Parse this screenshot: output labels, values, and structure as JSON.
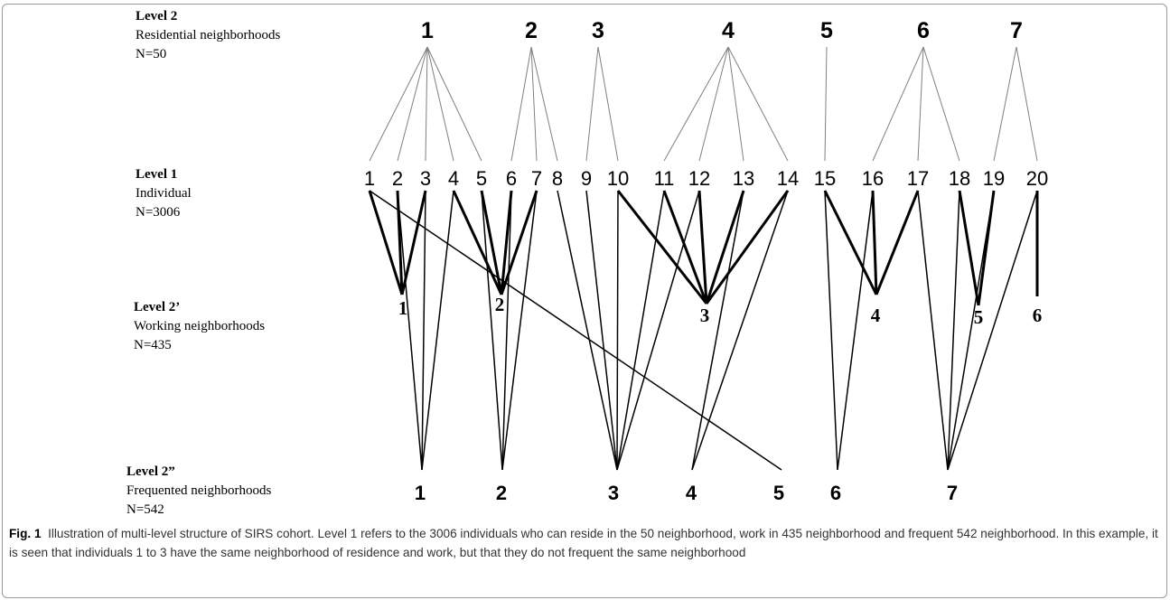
{
  "levels": [
    {
      "title": "Level 2",
      "desc": "Residential neighborhoods",
      "n": "N=50"
    },
    {
      "title": "Level 1",
      "desc": "Individual",
      "n": "N=3006"
    },
    {
      "title": "Level 2’",
      "desc": "Working neighborhoods",
      "n": "N=435"
    },
    {
      "title": "Level 2”",
      "desc": "Frequented neighborhoods",
      "n": "N=542"
    }
  ],
  "residential": [
    "1",
    "2",
    "3",
    "4",
    "5",
    "6",
    "7"
  ],
  "individuals": [
    "1",
    "2",
    "3",
    "4",
    "5",
    "6",
    "7",
    "8",
    "9",
    "10",
    "11",
    "12",
    "13",
    "14",
    "15",
    "16",
    "17",
    "18",
    "19",
    "20"
  ],
  "working": [
    "1",
    "2",
    "3",
    "4",
    "5",
    "6"
  ],
  "frequented": [
    "1",
    "2",
    "3",
    "4",
    "5",
    "6",
    "7"
  ],
  "edges": {
    "residence": [
      [
        1,
        1
      ],
      [
        1,
        2
      ],
      [
        1,
        3
      ],
      [
        1,
        4
      ],
      [
        1,
        5
      ],
      [
        2,
        6
      ],
      [
        2,
        7
      ],
      [
        2,
        8
      ],
      [
        3,
        9
      ],
      [
        3,
        10
      ],
      [
        4,
        11
      ],
      [
        4,
        12
      ],
      [
        4,
        13
      ],
      [
        4,
        14
      ],
      [
        5,
        15
      ],
      [
        6,
        16
      ],
      [
        6,
        17
      ],
      [
        6,
        18
      ],
      [
        7,
        19
      ],
      [
        7,
        20
      ]
    ],
    "work": [
      [
        1,
        1
      ],
      [
        2,
        1
      ],
      [
        3,
        1
      ],
      [
        4,
        2
      ],
      [
        5,
        2
      ],
      [
        6,
        2
      ],
      [
        7,
        2
      ],
      [
        10,
        3
      ],
      [
        11,
        3
      ],
      [
        12,
        3
      ],
      [
        13,
        3
      ],
      [
        14,
        3
      ],
      [
        15,
        4
      ],
      [
        16,
        4
      ],
      [
        17,
        4
      ],
      [
        18,
        5
      ],
      [
        19,
        5
      ],
      [
        20,
        6
      ]
    ],
    "frequent": [
      [
        1,
        5
      ],
      [
        2,
        1
      ],
      [
        3,
        1
      ],
      [
        4,
        1
      ],
      [
        5,
        2
      ],
      [
        6,
        2
      ],
      [
        7,
        2
      ],
      [
        8,
        3
      ],
      [
        9,
        3
      ],
      [
        10,
        3
      ],
      [
        11,
        3
      ],
      [
        12,
        3
      ],
      [
        13,
        4
      ],
      [
        14,
        4
      ],
      [
        15,
        6
      ],
      [
        16,
        6
      ],
      [
        17,
        7
      ],
      [
        18,
        7
      ],
      [
        19,
        7
      ],
      [
        20,
        7
      ]
    ]
  },
  "caption": {
    "label": "Fig. 1",
    "text": "Illustration of multi-level structure of SIRS cohort. Level 1 refers to the 3006 individuals who can reside in the 50 neighborhood, work in 435 neighborhood and frequent 542 neighborhood. In this example, it is seen that individuals 1 to 3 have the same neighborhood of residence and work, but that they do not frequent the same neighborhood"
  }
}
